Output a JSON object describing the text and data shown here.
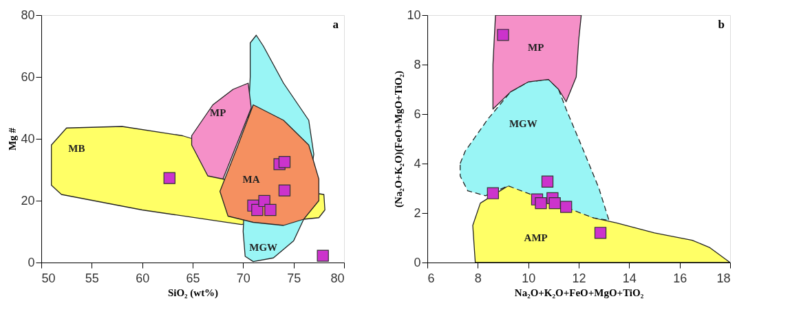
{
  "chart_data": [
    {
      "type": "scatter",
      "xlabel": "SiO₂ (wt%)",
      "ylabel": "Mg #",
      "xlim": [
        50,
        80
      ],
      "xticks": [
        50,
        55,
        60,
        65,
        70,
        75,
        80
      ],
      "ylim": [
        0,
        80
      ],
      "yticks": [
        0,
        20,
        40,
        60,
        80
      ],
      "grid": false,
      "series": [
        {
          "type": "area",
          "name": "MB",
          "color": "#ffff66",
          "x": [
            51,
            51,
            52.5,
            58,
            64,
            65,
            68,
            78,
            78.1,
            77.5,
            76,
            69.8,
            60,
            52,
            51
          ],
          "values": [
            28,
            38,
            43.5,
            44,
            41,
            40,
            27,
            22,
            17,
            14.5,
            14,
            12.3,
            17,
            22,
            25
          ]
        },
        {
          "type": "area",
          "name": "MGW",
          "color": "#99f5f5",
          "x": [
            70.7,
            71.3,
            72,
            74,
            76.5,
            77,
            76,
            75,
            73,
            71,
            70.2,
            70,
            70.7
          ],
          "values": [
            71,
            73.5,
            70,
            58,
            46,
            35,
            14,
            7,
            1.5,
            0.3,
            2,
            10,
            60
          ]
        },
        {
          "type": "area",
          "name": "MP",
          "color": "#f590c8",
          "x": [
            64.9,
            67,
            69,
            70.5,
            70.8,
            68,
            66.5,
            64.9
          ],
          "values": [
            41,
            51,
            56,
            58,
            50,
            27,
            28,
            38
          ]
        },
        {
          "type": "area",
          "name": "MA",
          "color": "#f59060",
          "x": [
            71,
            74,
            76.5,
            77.5,
            77.5,
            76,
            74,
            71,
            68.5,
            67.7,
            69.5
          ],
          "values": [
            51,
            46,
            38,
            27,
            20,
            14,
            12,
            13,
            15,
            23,
            38
          ]
        },
        {
          "color": "#cc33cc",
          "marker": "square",
          "x": [
            62.7,
            71.0,
            71.4,
            72.1,
            72.7,
            73.6,
            74.1,
            74.1,
            77.9
          ],
          "values": [
            27.3,
            18.4,
            17,
            19.9,
            17,
            31.8,
            32.5,
            23.3,
            2.2
          ]
        }
      ],
      "annotations": [
        "a"
      ]
    },
    {
      "type": "scatter",
      "xlabel": "Na₂O+K₂O+FeO+MgO+TiO₂",
      "ylabel": "(Na₂O+K₂O)(FeO+MgO+TiO₂)",
      "xlim": [
        6,
        18
      ],
      "xticks": [
        6,
        8,
        10,
        12,
        14,
        16,
        18
      ],
      "ylim": [
        0,
        10
      ],
      "yticks": [
        0,
        2,
        4,
        6,
        8,
        10
      ],
      "grid": false,
      "series": [
        {
          "type": "area",
          "name": "AMP",
          "color": "#ffff66",
          "x": [
            7.9,
            7.8,
            8.1,
            9.2,
            10,
            11.8,
            12.6,
            13.5,
            15,
            16.5,
            17.2,
            18
          ],
          "values": [
            0,
            1.5,
            2.4,
            3.1,
            2.9,
            2.2,
            1.8,
            1.6,
            1.2,
            0.9,
            0.6,
            0
          ]
        },
        {
          "type": "area",
          "name": "MGW",
          "color": "#99f5f5",
          "line_style": "dashed",
          "x": [
            7.3,
            7.5,
            8.4,
            9.3,
            10,
            10.8,
            11.2,
            11.5,
            12.2,
            12.8,
            13.2,
            12.6,
            9.2,
            8.3,
            7.6,
            7.3
          ],
          "values": [
            4.0,
            4.5,
            5.8,
            6.9,
            7.3,
            7.4,
            7,
            6.2,
            4.5,
            3,
            1.7,
            1.8,
            3.1,
            2.7,
            2.9,
            3.5
          ]
        },
        {
          "type": "area",
          "name": "MP",
          "color": "#f590c8",
          "x": [
            8.7,
            8.6,
            8.6,
            9.3,
            10,
            10.8,
            11.2,
            11.5,
            11.9,
            12,
            12.1
          ],
          "values": [
            10,
            8,
            6.2,
            6.9,
            7.3,
            7.4,
            7,
            6.5,
            7.5,
            9,
            10
          ]
        },
        {
          "color": "#cc33cc",
          "marker": "square",
          "x": [
            9.0,
            8.6,
            10.76,
            10.35,
            10.5,
            10.96,
            11.05,
            11.5,
            12.86
          ],
          "values": [
            9.2,
            2.8,
            3.27,
            2.55,
            2.4,
            2.6,
            2.4,
            2.25,
            1.2
          ]
        }
      ],
      "annotations": [
        "b"
      ]
    }
  ]
}
